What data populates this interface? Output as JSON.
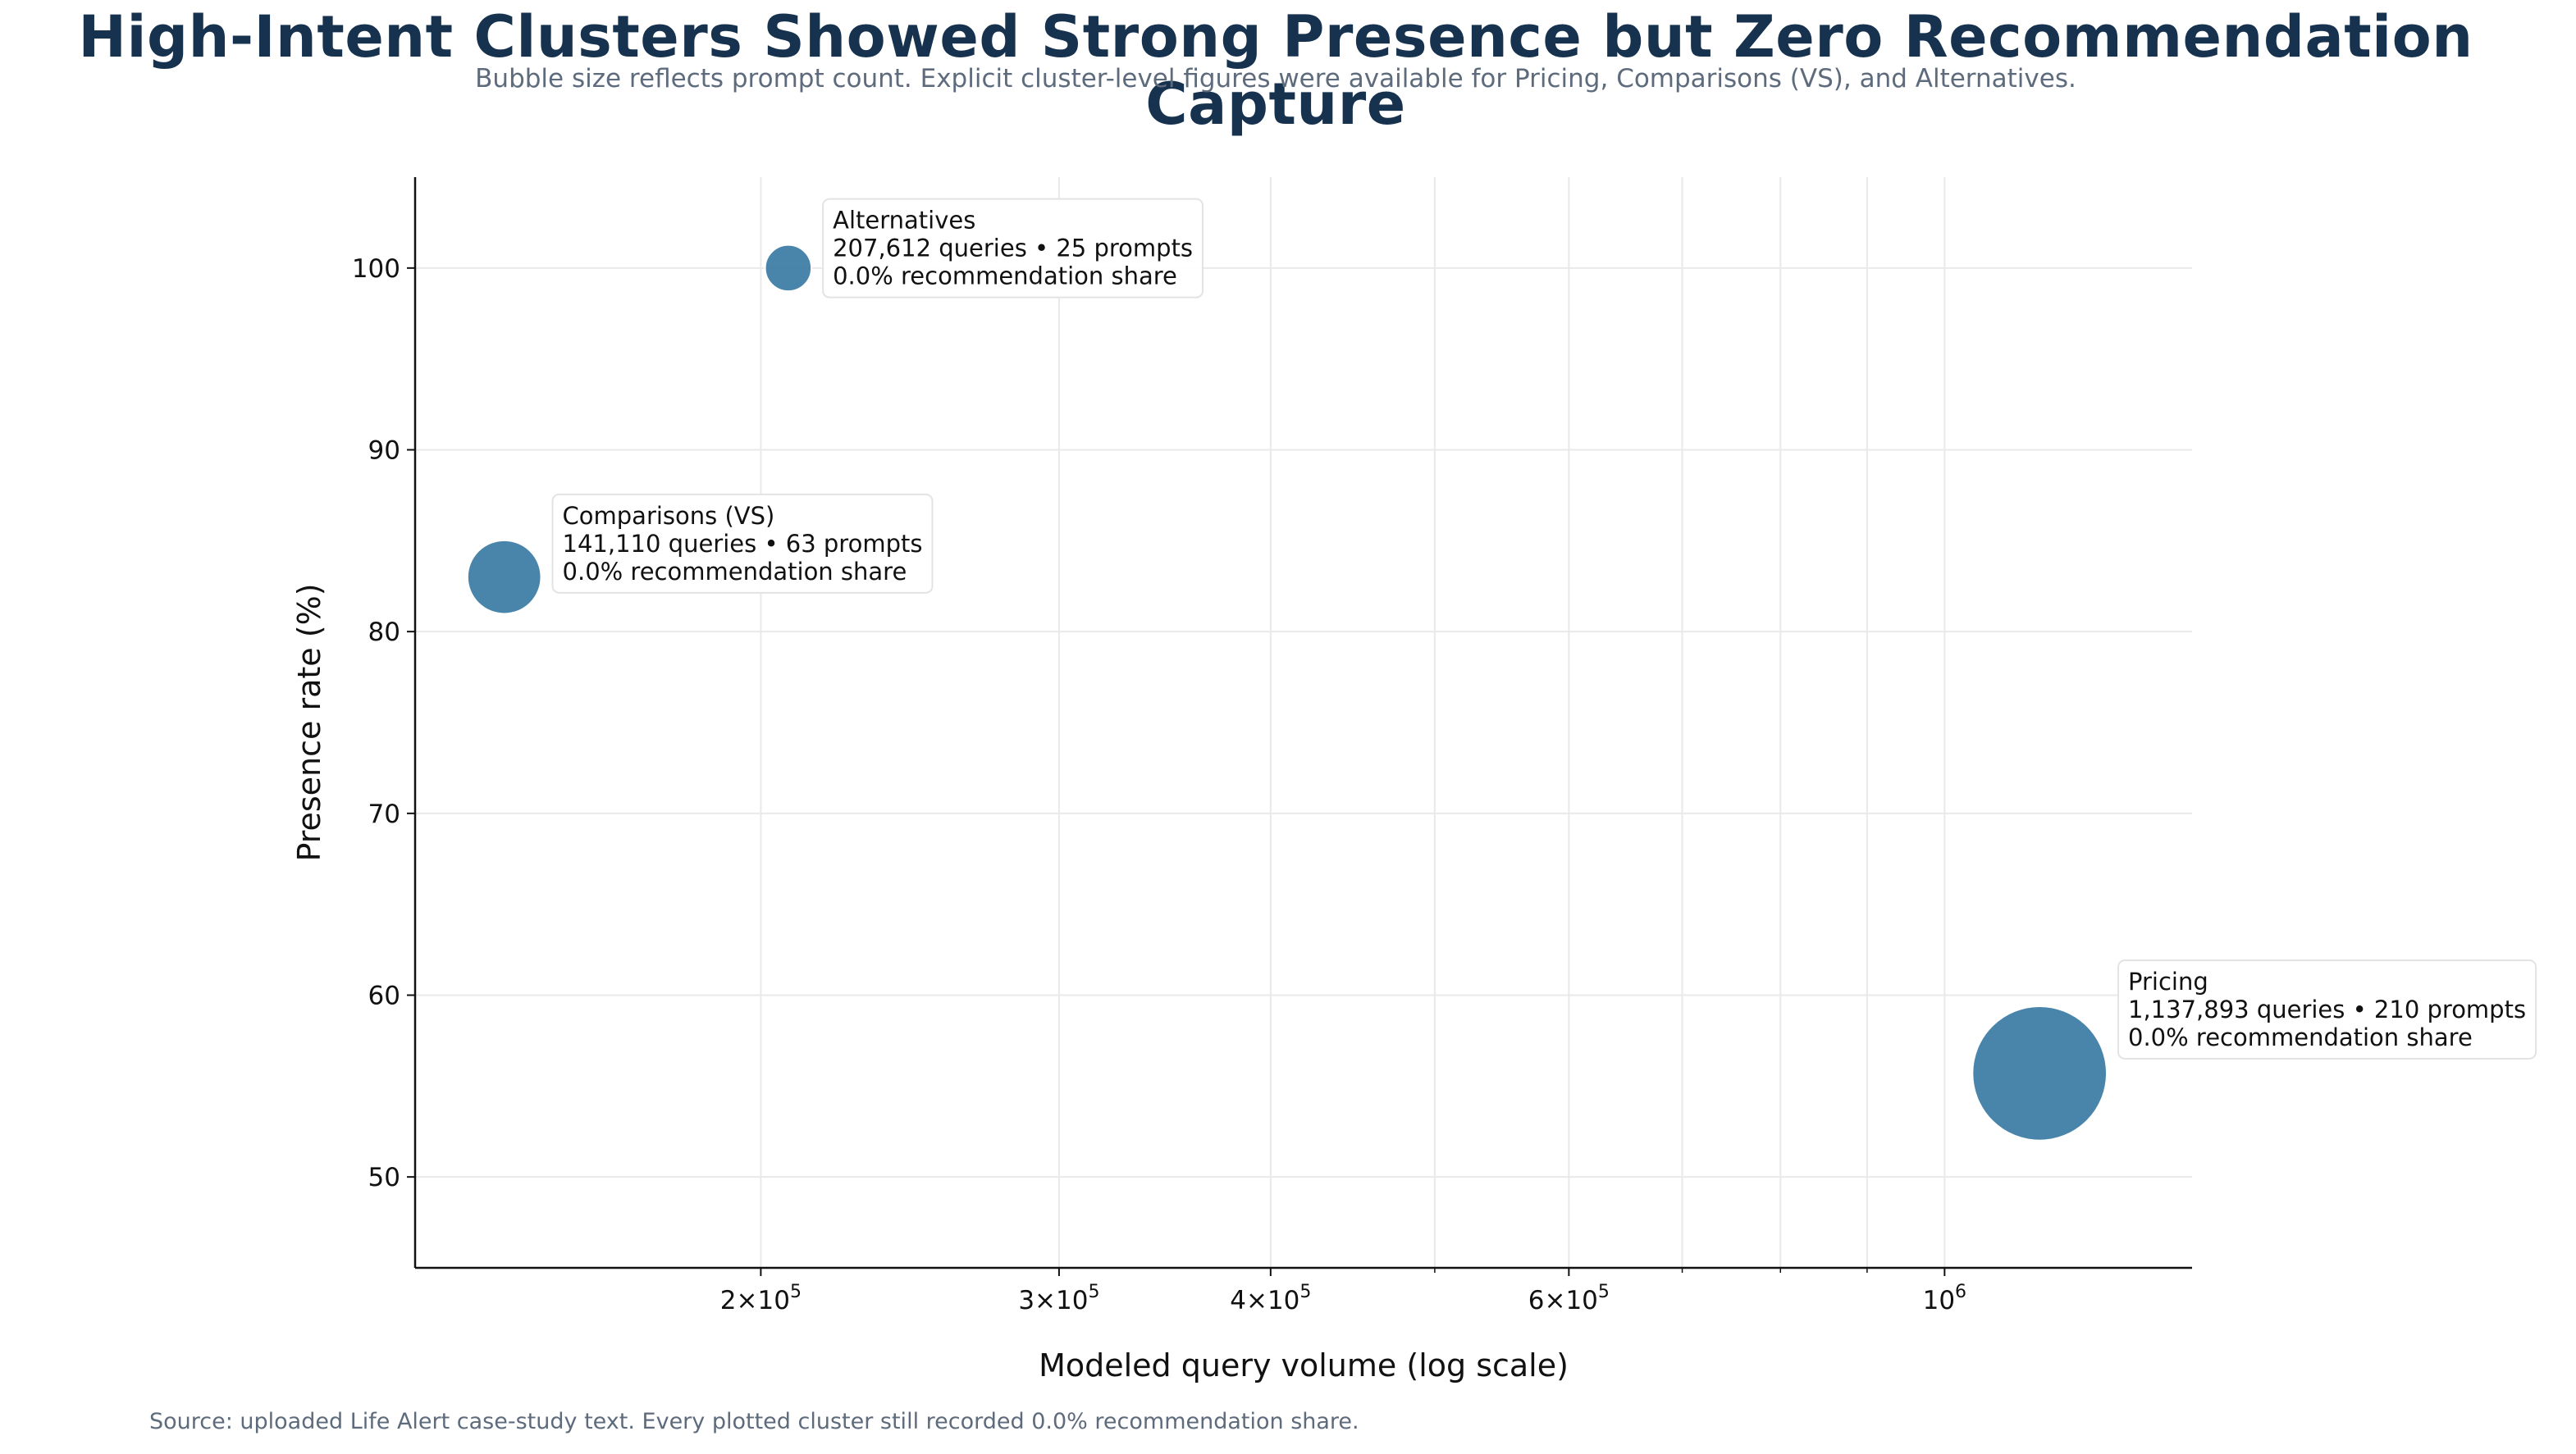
{
  "title": "High-Intent Clusters Showed Strong Presence but Zero Recommendation Capture",
  "subtitle": "Bubble size reflects prompt count. Explicit cluster-level figures were available for Pricing, Comparisons (VS), and Alternatives.",
  "source": "Source: uploaded Life Alert case-study text. Every plotted cluster still recorded 0.0% recommendation share.",
  "colors": {
    "bubble": "#3a7ba3",
    "title": "#17324f",
    "grid": "#e9e9e9"
  },
  "chart_data": {
    "type": "scatter",
    "xlabel": "Modeled query volume (log scale)",
    "ylabel": "Presence rate (%)",
    "x_scale": "log",
    "xlim": [
      125000,
      1400000
    ],
    "ylim": [
      45,
      105
    ],
    "grid": true,
    "y_ticks": [
      50,
      60,
      70,
      80,
      90,
      100
    ],
    "x_ticks": [
      {
        "value": 200000,
        "mantissa": "2",
        "base": "10",
        "exp": "5"
      },
      {
        "value": 300000,
        "mantissa": "3",
        "base": "10",
        "exp": "5"
      },
      {
        "value": 400000,
        "mantissa": "4",
        "base": "10",
        "exp": "5"
      },
      {
        "value": 600000,
        "mantissa": "6",
        "base": "10",
        "exp": "5"
      },
      {
        "value": 1000000,
        "mantissa": "",
        "base": "10",
        "exp": "6"
      }
    ],
    "minor_x_ticks": [
      500000,
      700000,
      800000,
      900000
    ],
    "points": [
      {
        "name": "Alternatives",
        "x": 207612,
        "y": 100.0,
        "prompts": 25,
        "lines": [
          "Alternatives",
          "207,612 queries • 25 prompts",
          "0.0% recommendation share"
        ]
      },
      {
        "name": "Comparisons (VS)",
        "x": 141110,
        "y": 83.0,
        "prompts": 63,
        "lines": [
          "Comparisons (VS)",
          "141,110 queries • 63 prompts",
          "0.0% recommendation share"
        ]
      },
      {
        "name": "Pricing",
        "x": 1137893,
        "y": 55.7,
        "prompts": 210,
        "lines": [
          "Pricing",
          "1,137,893 queries • 210 prompts",
          "0.0% recommendation share"
        ]
      }
    ]
  }
}
